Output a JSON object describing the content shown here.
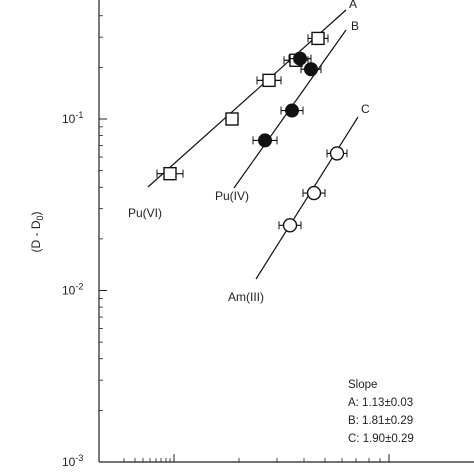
{
  "chart_data": {
    "type": "scatter",
    "ylabel": "(D - D0)",
    "ylabel_sub": "0",
    "yscale": "log",
    "ylim": [
      0.001,
      1
    ],
    "y_ticks": [
      {
        "value": 0.1,
        "base": "10",
        "exp": "-1"
      },
      {
        "value": 0.01,
        "base": "10",
        "exp": "-2"
      },
      {
        "value": 0.001,
        "base": "10",
        "exp": "-3"
      }
    ],
    "x_tick_labels": [],
    "series": [
      {
        "name": "Pu(VI)",
        "line_label": "A",
        "marker": "open-square",
        "points": [
          0.048,
          0.1,
          0.168,
          0.22,
          0.295
        ]
      },
      {
        "name": "Pu(IV)",
        "line_label": "B",
        "marker": "filled-circle",
        "points": [
          0.075,
          0.112,
          0.195,
          0.225
        ]
      },
      {
        "name": "Am(III)",
        "line_label": "C",
        "marker": "open-circle",
        "points": [
          0.024,
          0.037,
          0.063
        ]
      }
    ],
    "slope_box": {
      "title": "Slope",
      "lines": [
        "A: 1.13±0.03",
        "B: 1.81±0.29",
        "C: 1.90±0.29"
      ]
    }
  }
}
